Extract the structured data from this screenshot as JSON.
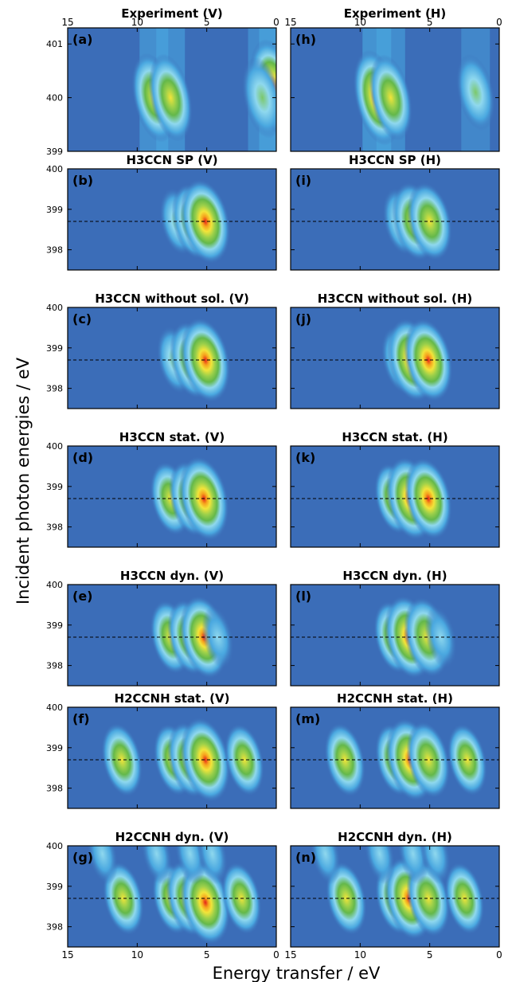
{
  "figure": {
    "xlabel": "Energy transfer  / eV",
    "ylabel": "Incident photon energies  / eV",
    "colors": {
      "background": "#3b6db8",
      "low": "#4aa8e0",
      "mid": "#8fd8ee",
      "green": "#64b84a",
      "yellow": "#f2e43a",
      "red": "#e4211a"
    }
  },
  "chart_data": [
    {
      "type": "heatmap",
      "label": "(a)",
      "title": "Experiment (V)",
      "xlim": [
        15,
        0
      ],
      "ylim": [
        399,
        401.3
      ],
      "yticks": [
        "401",
        "400",
        "399"
      ],
      "xticks_top": [
        "15",
        "10",
        "5",
        "0"
      ],
      "reference_line": null,
      "features": [
        {
          "x": 8.8,
          "y": 400.0,
          "intensity": 0.75
        },
        {
          "x": 7.6,
          "y": 400.0,
          "intensity": 0.7
        },
        {
          "x": 0.2,
          "y": 400.2,
          "intensity": 0.95
        },
        {
          "x": 1.0,
          "y": 400.0,
          "intensity": 0.5
        }
      ]
    },
    {
      "type": "heatmap",
      "label": "(h)",
      "title": "Experiment (H)",
      "xlim": [
        15,
        0
      ],
      "ylim": [
        399,
        401.3
      ],
      "yticks": [],
      "xticks_top": [
        "15",
        "10",
        "5",
        "0"
      ],
      "reference_line": null,
      "features": [
        {
          "x": 8.8,
          "y": 400.0,
          "intensity": 0.95
        },
        {
          "x": 7.8,
          "y": 400.0,
          "intensity": 0.65
        },
        {
          "x": 1.7,
          "y": 400.1,
          "intensity": 0.35
        }
      ]
    },
    {
      "type": "heatmap",
      "label": "(b)",
      "title": "H3CCN SP (V)",
      "xlim": [
        15,
        0
      ],
      "ylim": [
        397.5,
        400
      ],
      "yticks": [
        "400",
        "399",
        "398"
      ],
      "reference_line": 398.7,
      "features": [
        {
          "x": 7.1,
          "y": 398.7,
          "intensity": 0.45
        },
        {
          "x": 6.0,
          "y": 398.7,
          "intensity": 0.7
        },
        {
          "x": 5.1,
          "y": 398.7,
          "intensity": 1.0
        }
      ]
    },
    {
      "type": "heatmap",
      "label": "(i)",
      "title": "H3CCN SP (H)",
      "xlim": [
        15,
        0
      ],
      "ylim": [
        397.5,
        400
      ],
      "yticks": [],
      "reference_line": 398.7,
      "features": [
        {
          "x": 7.1,
          "y": 398.7,
          "intensity": 0.45
        },
        {
          "x": 6.1,
          "y": 398.7,
          "intensity": 0.8
        },
        {
          "x": 5.0,
          "y": 398.7,
          "intensity": 0.8
        }
      ]
    },
    {
      "type": "heatmap",
      "label": "(c)",
      "title": "H3CCN without sol. (V)",
      "xlim": [
        15,
        0
      ],
      "ylim": [
        397.5,
        400
      ],
      "yticks": [
        "400",
        "399",
        "398"
      ],
      "reference_line": 398.7,
      "features": [
        {
          "x": 7.3,
          "y": 398.7,
          "intensity": 0.45
        },
        {
          "x": 6.1,
          "y": 398.7,
          "intensity": 0.75
        },
        {
          "x": 5.1,
          "y": 398.7,
          "intensity": 1.0
        }
      ]
    },
    {
      "type": "heatmap",
      "label": "(j)",
      "title": "H3CCN without sol. (H)",
      "xlim": [
        15,
        0
      ],
      "ylim": [
        397.5,
        400
      ],
      "yticks": [],
      "reference_line": 398.7,
      "features": [
        {
          "x": 7.2,
          "y": 398.7,
          "intensity": 0.45
        },
        {
          "x": 6.3,
          "y": 398.7,
          "intensity": 0.95
        },
        {
          "x": 5.1,
          "y": 398.7,
          "intensity": 0.95
        }
      ]
    },
    {
      "type": "heatmap",
      "label": "(d)",
      "title": "H3CCN stat. (V)",
      "xlim": [
        15,
        0
      ],
      "ylim": [
        397.5,
        400
      ],
      "yticks": [
        "400",
        "399",
        "398"
      ],
      "reference_line": 398.7,
      "features": [
        {
          "x": 7.6,
          "y": 398.7,
          "intensity": 0.65
        },
        {
          "x": 6.2,
          "y": 398.7,
          "intensity": 0.7
        },
        {
          "x": 5.2,
          "y": 398.7,
          "intensity": 1.0
        }
      ]
    },
    {
      "type": "heatmap",
      "label": "(k)",
      "title": "H3CCN stat. (H)",
      "xlim": [
        15,
        0
      ],
      "ylim": [
        397.5,
        400
      ],
      "yticks": [],
      "reference_line": 398.7,
      "features": [
        {
          "x": 7.6,
          "y": 398.7,
          "intensity": 0.55
        },
        {
          "x": 6.4,
          "y": 398.7,
          "intensity": 0.95
        },
        {
          "x": 5.1,
          "y": 398.7,
          "intensity": 0.9
        }
      ]
    },
    {
      "type": "heatmap",
      "label": "(e)",
      "title": "H3CCN dyn. (V)",
      "xlim": [
        15,
        0
      ],
      "ylim": [
        397.5,
        400
      ],
      "yticks": [
        "400",
        "399",
        "398"
      ],
      "reference_line": 398.7,
      "features": [
        {
          "x": 7.6,
          "y": 398.7,
          "intensity": 0.65
        },
        {
          "x": 6.3,
          "y": 398.7,
          "intensity": 0.7
        },
        {
          "x": 5.2,
          "y": 398.7,
          "intensity": 0.95
        },
        {
          "x": 4.2,
          "y": 398.7,
          "intensity": 0.3
        }
      ]
    },
    {
      "type": "heatmap",
      "label": "(l)",
      "title": "H3CCN dyn. (H)",
      "xlim": [
        15,
        0
      ],
      "ylim": [
        397.5,
        400
      ],
      "yticks": [],
      "reference_line": 398.7,
      "features": [
        {
          "x": 7.6,
          "y": 398.7,
          "intensity": 0.6
        },
        {
          "x": 6.5,
          "y": 398.7,
          "intensity": 0.95
        },
        {
          "x": 5.2,
          "y": 398.7,
          "intensity": 0.85
        },
        {
          "x": 4.2,
          "y": 398.7,
          "intensity": 0.3
        }
      ]
    },
    {
      "type": "heatmap",
      "label": "(f)",
      "title": "H2CCNH stat. (V)",
      "xlim": [
        15,
        0
      ],
      "ylim": [
        397.5,
        400
      ],
      "yticks": [
        "400",
        "399",
        "398"
      ],
      "reference_line": 398.7,
      "features": [
        {
          "x": 11.1,
          "y": 398.7,
          "intensity": 0.65
        },
        {
          "x": 7.4,
          "y": 398.7,
          "intensity": 0.6
        },
        {
          "x": 6.3,
          "y": 398.7,
          "intensity": 0.7
        },
        {
          "x": 5.1,
          "y": 398.7,
          "intensity": 1.0
        },
        {
          "x": 2.3,
          "y": 398.7,
          "intensity": 0.6
        }
      ]
    },
    {
      "type": "heatmap",
      "label": "(m)",
      "title": "H2CCNH stat. (H)",
      "xlim": [
        15,
        0
      ],
      "ylim": [
        397.5,
        400
      ],
      "yticks": [],
      "reference_line": 398.7,
      "features": [
        {
          "x": 11.1,
          "y": 398.7,
          "intensity": 0.65
        },
        {
          "x": 7.5,
          "y": 398.7,
          "intensity": 0.6
        },
        {
          "x": 6.4,
          "y": 398.7,
          "intensity": 0.95
        },
        {
          "x": 5.1,
          "y": 398.7,
          "intensity": 0.75
        },
        {
          "x": 2.3,
          "y": 398.7,
          "intensity": 0.6
        }
      ]
    },
    {
      "type": "heatmap",
      "label": "(g)",
      "title": "H2CCNH dyn. (V)",
      "xlim": [
        15,
        0
      ],
      "ylim": [
        397.5,
        400
      ],
      "yticks": [
        "400",
        "399",
        "398"
      ],
      "reference_line": 398.7,
      "features": [
        {
          "x": 11.0,
          "y": 398.7,
          "intensity": 0.65
        },
        {
          "x": 7.5,
          "y": 398.7,
          "intensity": 0.6
        },
        {
          "x": 6.4,
          "y": 398.7,
          "intensity": 0.7
        },
        {
          "x": 5.1,
          "y": 398.6,
          "intensity": 1.0
        },
        {
          "x": 2.5,
          "y": 398.7,
          "intensity": 0.6
        },
        {
          "x": 12.5,
          "y": 399.8,
          "intensity": 0.25
        },
        {
          "x": 8.6,
          "y": 399.8,
          "intensity": 0.25
        },
        {
          "x": 6.2,
          "y": 399.8,
          "intensity": 0.25
        },
        {
          "x": 4.6,
          "y": 399.8,
          "intensity": 0.25
        }
      ]
    },
    {
      "type": "heatmap",
      "label": "(n)",
      "title": "H2CCNH dyn. (H)",
      "xlim": [
        15,
        0
      ],
      "ylim": [
        397.5,
        400
      ],
      "yticks": [],
      "reference_line": 398.7,
      "features": [
        {
          "x": 11.0,
          "y": 398.7,
          "intensity": 0.65
        },
        {
          "x": 7.5,
          "y": 398.7,
          "intensity": 0.6
        },
        {
          "x": 6.5,
          "y": 398.7,
          "intensity": 0.95
        },
        {
          "x": 5.1,
          "y": 398.7,
          "intensity": 0.75
        },
        {
          "x": 2.5,
          "y": 398.7,
          "intensity": 0.6
        },
        {
          "x": 12.5,
          "y": 399.8,
          "intensity": 0.25
        },
        {
          "x": 8.6,
          "y": 399.8,
          "intensity": 0.25
        },
        {
          "x": 6.2,
          "y": 399.8,
          "intensity": 0.25
        },
        {
          "x": 4.6,
          "y": 399.8,
          "intensity": 0.25
        }
      ]
    }
  ],
  "bottom_xticks": [
    "15",
    "10",
    "5",
    "0"
  ]
}
